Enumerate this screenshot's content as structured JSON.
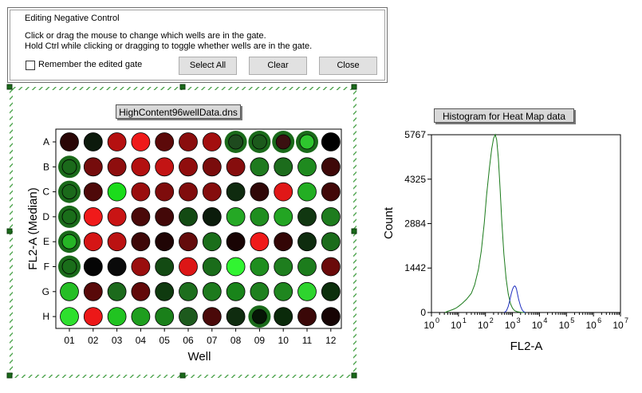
{
  "dialog": {
    "title": "Editing Negative Control",
    "instruction_line1": "Click or drag the mouse to change which wells are in the gate.",
    "instruction_line2": "Hold Ctrl while clicking or dragging to toggle whether wells are in the gate.",
    "remember_label": "Remember the edited gate",
    "remember_checked": false,
    "select_all_label": "Select All",
    "clear_label": "Clear",
    "close_label": "Close"
  },
  "heatmap": {
    "title": "HighContent96wellData.dns",
    "ylabel": "FL2-A (Median)",
    "xlabel": "Well",
    "rows": [
      "A",
      "B",
      "C",
      "D",
      "E",
      "F",
      "G",
      "H"
    ],
    "cols": [
      "01",
      "02",
      "03",
      "04",
      "05",
      "06",
      "07",
      "08",
      "09",
      "10",
      "11",
      "12"
    ],
    "colors": [
      [
        "#2a0606",
        "#0c1a0c",
        "#b51010",
        "#ee1a1a",
        "#5c0a0a",
        "#8a0d0d",
        "#a30f0f",
        "#1e4a1e",
        "#1c5a1c",
        "#3a1010",
        "#2ec62e",
        "#000000"
      ],
      [
        "#1b6a1b",
        "#750c0c",
        "#8e0e0e",
        "#b31010",
        "#c31414",
        "#900d0d",
        "#7a0c0c",
        "#860d0d",
        "#1e7a1e",
        "#1c6c1c",
        "#1f8a1f",
        "#3e0808"
      ],
      [
        "#1b6a1b",
        "#4e0909",
        "#1bdc1b",
        "#9a0e0e",
        "#7e0c0c",
        "#800c0c",
        "#850d0d",
        "#0f2b0f",
        "#300707",
        "#e01818",
        "#23ae23",
        "#420808"
      ],
      [
        "#1a6e1a",
        "#f01a1a",
        "#c91414",
        "#4a0909",
        "#430808",
        "#134a13",
        "#0b1c0b",
        "#25a825",
        "#1f8e1f",
        "#23a523",
        "#113711",
        "#1e7c1e"
      ],
      [
        "#26b526",
        "#d51515",
        "#bb1212",
        "#3e0808",
        "#200505",
        "#640b0b",
        "#1a6e1a",
        "#190404",
        "#ef1a1a",
        "#330606",
        "#0e2c0e",
        "#1b6c1b"
      ],
      [
        "#1a6e1a",
        "#050505",
        "#0a0a0a",
        "#9a0e0e",
        "#134a13",
        "#dc1616",
        "#1a6c1a",
        "#31f431",
        "#1f8e1f",
        "#1e7e1e",
        "#1c7c1c",
        "#6a0a0a"
      ],
      [
        "#26be26",
        "#580909",
        "#1c6a1c",
        "#620a0a",
        "#0f3a0f",
        "#1d6e1d",
        "#1d7a1d",
        "#19841a",
        "#1e801e",
        "#1f861f",
        "#2ed42e",
        "#0d300d"
      ],
      [
        "#2ee02e",
        "#ec1818",
        "#21c321",
        "#1e9e1e",
        "#1a801a",
        "#1d5a1d",
        "#4a0909",
        "#0f2c0f",
        "#061606",
        "#0a2a0a",
        "#3a0707",
        "#160404"
      ]
    ],
    "selected": [
      [
        false,
        false,
        false,
        false,
        false,
        false,
        false,
        true,
        true,
        true,
        true,
        false
      ],
      [
        true,
        false,
        false,
        false,
        false,
        false,
        false,
        false,
        false,
        false,
        false,
        false
      ],
      [
        true,
        false,
        false,
        false,
        false,
        false,
        false,
        false,
        false,
        false,
        false,
        false
      ],
      [
        true,
        false,
        false,
        false,
        false,
        false,
        false,
        false,
        false,
        false,
        false,
        false
      ],
      [
        true,
        false,
        false,
        false,
        false,
        false,
        false,
        false,
        false,
        false,
        false,
        false
      ],
      [
        true,
        false,
        false,
        false,
        false,
        false,
        false,
        false,
        false,
        false,
        false,
        false
      ],
      [
        false,
        false,
        false,
        false,
        false,
        false,
        false,
        false,
        false,
        false,
        false,
        false
      ],
      [
        false,
        false,
        false,
        false,
        false,
        false,
        false,
        false,
        true,
        false,
        false,
        false
      ]
    ]
  },
  "chart_data": {
    "type": "line",
    "title": "Histogram for Heat Map data",
    "xlabel": "FL2-A",
    "ylabel": "Count",
    "xscale": "log",
    "xlim": [
      1,
      10000000
    ],
    "ylim": [
      0,
      5767
    ],
    "yticks": [
      "0",
      "1442",
      "2884",
      "4325",
      "5767"
    ],
    "ytick_values": [
      0,
      1442,
      2884,
      4325,
      5767
    ],
    "xtick_exponents": [
      "0",
      "1",
      "2",
      "3",
      "4",
      "5",
      "6",
      "7"
    ],
    "xtick_base": "10",
    "series": [
      {
        "color": "#1a7a1a",
        "x": [
          3.2,
          4,
          6,
          8,
          10,
          14,
          20,
          30,
          40,
          55,
          70,
          90,
          110,
          140,
          170,
          200,
          230,
          260,
          300,
          350,
          400,
          480,
          580,
          700,
          850,
          1000,
          1200,
          1500,
          2000,
          3000
        ],
        "y": [
          0,
          40,
          90,
          140,
          200,
          300,
          430,
          620,
          900,
          1400,
          2000,
          2900,
          3800,
          4700,
          5300,
          5650,
          5767,
          5600,
          5000,
          4000,
          3000,
          1900,
          1100,
          600,
          280,
          140,
          60,
          25,
          8,
          0
        ]
      },
      {
        "color": "#2030c0",
        "x": [
          500,
          600,
          700,
          800,
          900,
          1000,
          1100,
          1200,
          1300,
          1400,
          1500,
          1700,
          2000,
          2300,
          2600,
          3000
        ],
        "y": [
          0,
          60,
          200,
          400,
          600,
          750,
          830,
          860,
          840,
          770,
          650,
          420,
          200,
          80,
          25,
          0
        ]
      }
    ]
  }
}
